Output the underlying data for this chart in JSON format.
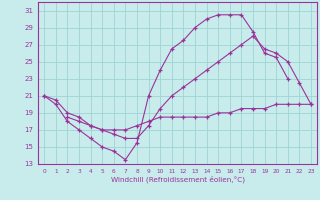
{
  "xlabel": "Windchill (Refroidissement éolien,°C)",
  "xlim": [
    -0.5,
    23.5
  ],
  "ylim": [
    13,
    32
  ],
  "yticks": [
    13,
    15,
    17,
    19,
    21,
    23,
    25,
    27,
    29,
    31
  ],
  "xticks": [
    0,
    1,
    2,
    3,
    4,
    5,
    6,
    7,
    8,
    9,
    10,
    11,
    12,
    13,
    14,
    15,
    16,
    17,
    18,
    19,
    20,
    21,
    22,
    23
  ],
  "bg_color": "#c8ecec",
  "grid_color": "#a0d4d4",
  "line_color": "#993399",
  "lines": [
    {
      "x": [
        0,
        1,
        2,
        3,
        4,
        5,
        6,
        7,
        8,
        9,
        10,
        11,
        12,
        13,
        14,
        15,
        16,
        17,
        18,
        19,
        20,
        21
      ],
      "y": [
        21,
        20,
        18,
        17,
        16,
        15,
        14.5,
        13.5,
        15.5,
        21,
        24,
        26.5,
        27.5,
        29,
        30,
        30.5,
        30.5,
        30.5,
        28.5,
        26,
        25.5,
        23
      ]
    },
    {
      "x": [
        0,
        1,
        2,
        3,
        4,
        5,
        6,
        7,
        8,
        9,
        10,
        11,
        12,
        13,
        14,
        15,
        16,
        17,
        18,
        19,
        20,
        21,
        22,
        23
      ],
      "y": [
        21,
        20.5,
        19,
        18.5,
        17.5,
        17,
        16.5,
        16,
        16,
        17.5,
        19.5,
        21,
        22,
        23,
        24,
        25,
        26,
        27,
        28,
        26.5,
        26,
        25,
        22.5,
        20
      ]
    },
    {
      "x": [
        2,
        3,
        4,
        5,
        6,
        7,
        8,
        9,
        10,
        11,
        12,
        13,
        14,
        15,
        16,
        17,
        18,
        19,
        20,
        21,
        22,
        23
      ],
      "y": [
        18.5,
        18,
        17.5,
        17,
        17,
        17,
        17.5,
        18,
        18.5,
        18.5,
        18.5,
        18.5,
        18.5,
        19,
        19,
        19.5,
        19.5,
        19.5,
        20,
        20,
        20,
        20
      ]
    }
  ]
}
